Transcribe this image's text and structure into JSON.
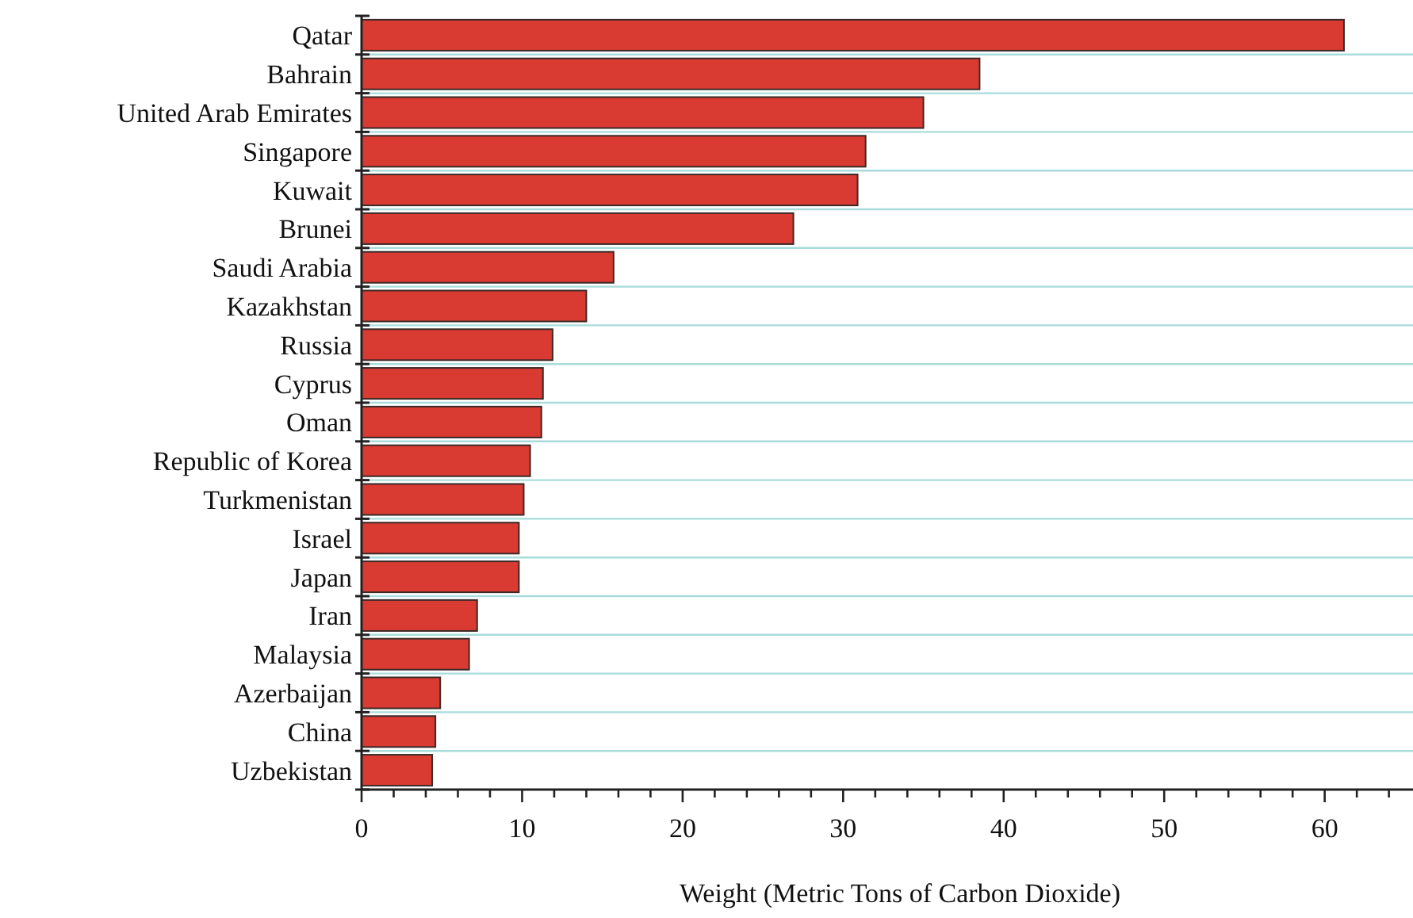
{
  "chart_data": {
    "type": "bar",
    "orientation": "horizontal",
    "categories": [
      "Qatar",
      "Bahrain",
      "United Arab Emirates",
      "Singapore",
      "Kuwait",
      "Brunei",
      "Saudi Arabia",
      "Kazakhstan",
      "Russia",
      "Cyprus",
      "Oman",
      "Republic of Korea",
      "Turkmenistan",
      "Israel",
      "Japan",
      "Iran",
      "Malaysia",
      "Azerbaijan",
      "China",
      "Uzbekistan"
    ],
    "values": [
      61.2,
      38.5,
      35.0,
      31.4,
      30.9,
      26.9,
      15.7,
      14.0,
      11.9,
      11.3,
      11.2,
      10.5,
      10.1,
      9.8,
      9.8,
      7.2,
      6.7,
      4.9,
      4.6,
      4.4
    ],
    "color": "#d93a32",
    "xlabel": "Weight (Metric Tons of Carbon Dioxide)",
    "xlim": [
      0,
      65.5
    ],
    "xticks": [
      0,
      {
        "value": 2,
        "label": null
      },
      {
        "value": 4,
        "label": null
      },
      {
        "value": 6,
        "label": null
      },
      {
        "value": 8,
        "label": null
      },
      10,
      {
        "value": 12,
        "label": null
      },
      {
        "value": 14,
        "label": null
      },
      {
        "value": 16,
        "label": null
      },
      {
        "value": 18,
        "label": null
      },
      20,
      {
        "value": 22,
        "label": null
      },
      {
        "value": 24,
        "label": null
      },
      {
        "value": 26,
        "label": null
      },
      {
        "value": 28,
        "label": null
      },
      30,
      {
        "value": 32,
        "label": null
      },
      {
        "value": 34,
        "label": null
      },
      {
        "value": 36,
        "label": null
      },
      {
        "value": 38,
        "label": null
      },
      40,
      {
        "value": 42,
        "label": null
      },
      {
        "value": 44,
        "label": null
      },
      {
        "value": 46,
        "label": null
      },
      {
        "value": 48,
        "label": null
      },
      50,
      {
        "value": 52,
        "label": null
      },
      {
        "value": 54,
        "label": null
      },
      {
        "value": 56,
        "label": null
      },
      {
        "value": 58,
        "label": null
      },
      60,
      {
        "value": 62,
        "label": null
      },
      {
        "value": 64,
        "label": null
      }
    ],
    "grid": "y"
  }
}
